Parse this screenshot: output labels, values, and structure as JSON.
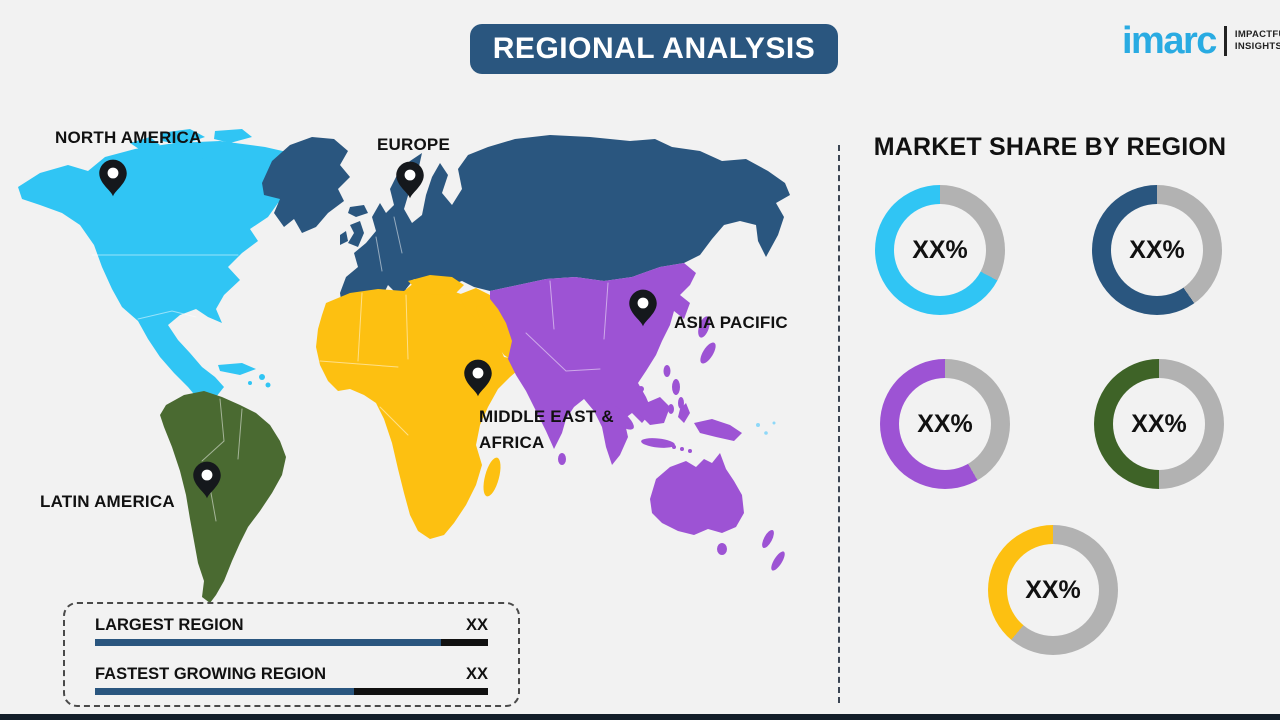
{
  "header": {
    "title": "REGIONAL ANALYSIS",
    "bg_color": "#2A567F",
    "text_color": "#FFFFFF"
  },
  "logo": {
    "brand": "imarc",
    "brand_color": "#29ABE2",
    "tagline": [
      "IMPACTFUL",
      "INSIGHTS"
    ]
  },
  "map": {
    "regions": [
      {
        "id": "north-america",
        "label": "NORTH AMERICA",
        "color": "#30C5F4"
      },
      {
        "id": "europe",
        "label": "EUROPE",
        "color": "#2A567F"
      },
      {
        "id": "asia-pacific",
        "label": "ASIA PACIFIC",
        "color": "#9D53D4"
      },
      {
        "id": "middle-east-africa",
        "label": "MIDDLE EAST & AFRICA",
        "color": "#FDC011"
      },
      {
        "id": "latin-america",
        "label": "LATIN AMERICA",
        "color": "#4A6A31"
      }
    ],
    "pin_color": "#15181C"
  },
  "legend": {
    "bar_fill_color": "#2A567F",
    "bar_track_color": "#111111",
    "rows": [
      {
        "label": "LARGEST REGION",
        "value": "XX",
        "fill_pct": 88
      },
      {
        "label": "FASTEST GROWING REGION",
        "value": "XX",
        "fill_pct": 66
      }
    ]
  },
  "market_share": {
    "title": "MARKET SHARE BY REGION",
    "track_color": "#B2B2B2",
    "donuts": [
      {
        "region": "North America",
        "value_label": "XX%",
        "color": "#30C5F4",
        "filled_deg": 242
      },
      {
        "region": "Europe",
        "value_label": "XX%",
        "color": "#2A567F",
        "filled_deg": 215
      },
      {
        "region": "Asia Pacific",
        "value_label": "XX%",
        "color": "#9D53D4",
        "filled_deg": 210
      },
      {
        "region": "Latin America",
        "value_label": "XX%",
        "color": "#3E6327",
        "filled_deg": 180
      },
      {
        "region": "Middle East & Africa",
        "value_label": "XX%",
        "color": "#FDC011",
        "filled_deg": 140
      }
    ]
  }
}
